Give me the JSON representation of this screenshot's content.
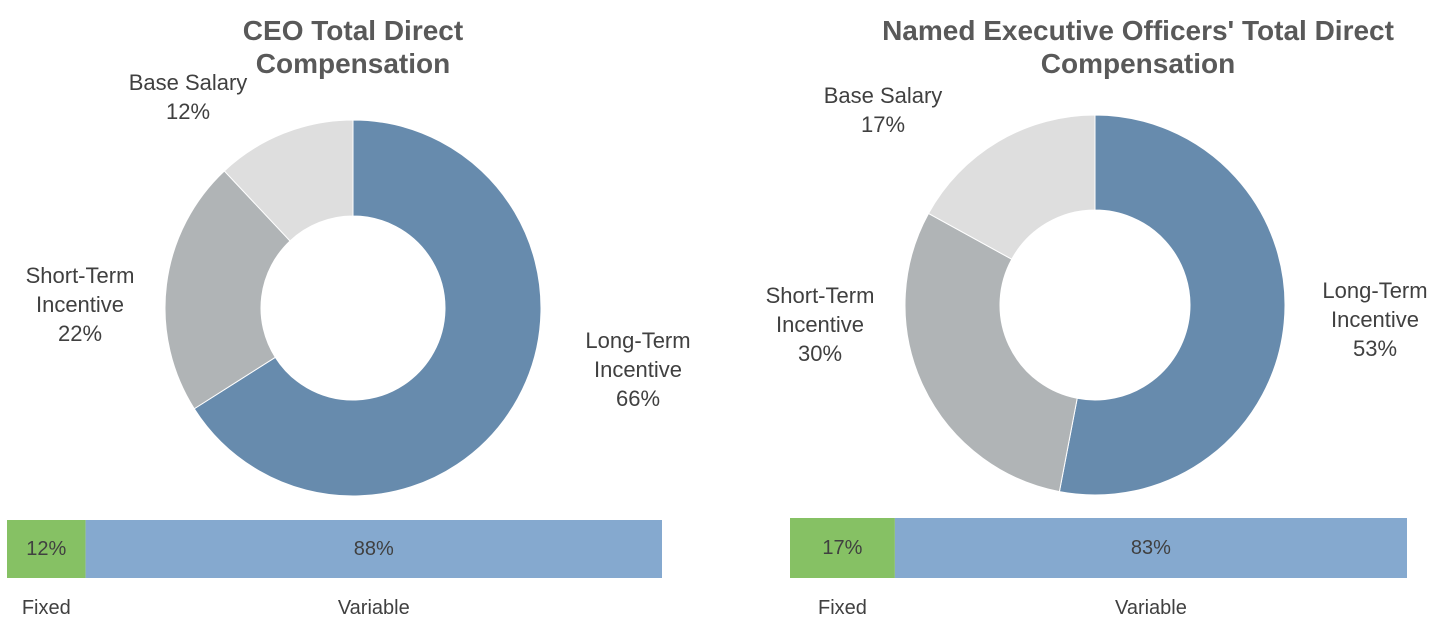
{
  "chart_data": [
    {
      "type": "donut",
      "title": "CEO Total Direct Compensation",
      "categories": [
        "Long-Term Incentive",
        "Short-Term Incentive",
        "Base Salary"
      ],
      "values": [
        66,
        22,
        12
      ],
      "value_labels": [
        "66%",
        "22%",
        "12%"
      ],
      "colors": [
        "#678bad",
        "#b0b4b6",
        "#dedede"
      ]
    },
    {
      "type": "stacked_bar",
      "categories": [
        "Fixed",
        "Variable"
      ],
      "values": [
        12,
        88
      ],
      "value_labels": [
        "12%",
        "88%"
      ],
      "colors": [
        "#86c164",
        "#85a9cf"
      ]
    },
    {
      "type": "donut",
      "title": "Named Executive Officers' Total Direct Compensation",
      "categories": [
        "Long-Term Incentive",
        "Short-Term Incentive",
        "Base Salary"
      ],
      "values": [
        53,
        30,
        17
      ],
      "value_labels": [
        "53%",
        "30%",
        "17%"
      ],
      "colors": [
        "#678bad",
        "#b0b4b6",
        "#dedede"
      ]
    },
    {
      "type": "stacked_bar",
      "categories": [
        "Fixed",
        "Variable"
      ],
      "values": [
        17,
        83
      ],
      "value_labels": [
        "17%",
        "83%"
      ],
      "colors": [
        "#86c164",
        "#85a9cf"
      ]
    }
  ]
}
